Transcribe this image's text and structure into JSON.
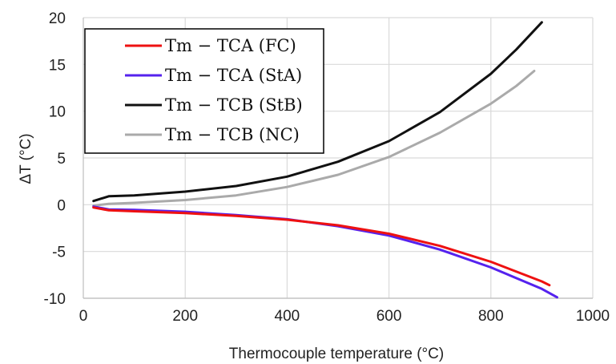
{
  "chart_data": {
    "type": "line",
    "xlabel": "Thermocouple temperature (°C)",
    "ylabel": "ΔT (°C)",
    "xlim": [
      0,
      1000
    ],
    "ylim": [
      -10,
      20
    ],
    "xticks": [
      0,
      200,
      400,
      600,
      800,
      1000
    ],
    "yticks": [
      -10,
      -5,
      0,
      5,
      10,
      15,
      20
    ],
    "xtick_labels": [
      "0",
      "200",
      "400",
      "600",
      "800",
      "1000"
    ],
    "ytick_labels": [
      "-10",
      "-5",
      "0",
      "5",
      "10",
      "15",
      "20"
    ],
    "grid": true,
    "legend_position": "top-left",
    "series": [
      {
        "name": "Tm − TCA (FC)",
        "color": "#ee1111",
        "x": [
          20,
          50,
          100,
          200,
          300,
          400,
          500,
          600,
          700,
          800,
          900,
          915
        ],
        "y": [
          -0.3,
          -0.6,
          -0.7,
          -0.9,
          -1.2,
          -1.6,
          -2.2,
          -3.1,
          -4.4,
          -6.1,
          -8.2,
          -8.6
        ]
      },
      {
        "name": "Tm − TCA (StA)",
        "color": "#5522ee",
        "x": [
          20,
          50,
          100,
          200,
          300,
          400,
          500,
          600,
          700,
          800,
          900,
          930
        ],
        "y": [
          -0.2,
          -0.5,
          -0.55,
          -0.75,
          -1.1,
          -1.55,
          -2.3,
          -3.3,
          -4.8,
          -6.7,
          -9.0,
          -9.9
        ]
      },
      {
        "name": "Tm − TCB (StB)",
        "color": "#111111",
        "x": [
          20,
          50,
          100,
          200,
          300,
          400,
          500,
          600,
          700,
          800,
          850,
          900
        ],
        "y": [
          0.4,
          0.9,
          1.0,
          1.4,
          2.0,
          3.0,
          4.6,
          6.8,
          9.9,
          14.0,
          16.6,
          19.5
        ]
      },
      {
        "name": "Tm − TCB (NC)",
        "color": "#aaaaaa",
        "x": [
          20,
          50,
          100,
          200,
          300,
          400,
          500,
          600,
          700,
          800,
          850,
          885
        ],
        "y": [
          -0.1,
          0.1,
          0.2,
          0.5,
          1.0,
          1.9,
          3.2,
          5.1,
          7.7,
          10.8,
          12.7,
          14.3
        ]
      }
    ]
  }
}
